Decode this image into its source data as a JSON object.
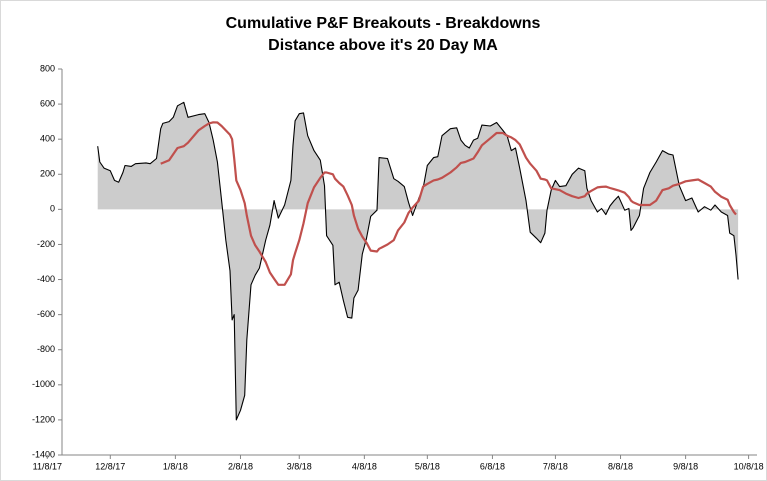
{
  "chart_data": {
    "type": "line",
    "title": "Cumulative P&F Breakouts - Breakdowns",
    "subtitle": "Distance above it's 20 Day MA",
    "x": [
      "2017-12-02",
      "2017-12-03",
      "2017-12-05",
      "2017-12-08",
      "2017-12-10",
      "2017-12-12",
      "2017-12-14",
      "2017-12-15",
      "2017-12-18",
      "2017-12-20",
      "2017-12-25",
      "2017-12-27",
      "2017-12-30",
      "2018-01-01",
      "2018-01-02",
      "2018-01-05",
      "2018-01-07",
      "2018-01-09",
      "2018-01-12",
      "2018-01-14",
      "2018-01-19",
      "2018-01-22",
      "2018-01-24",
      "2018-01-26",
      "2018-01-28",
      "2018-01-30",
      "2018-02-01",
      "2018-02-03",
      "2018-02-04",
      "2018-02-05",
      "2018-02-06",
      "2018-02-08",
      "2018-02-10",
      "2018-02-11",
      "2018-02-13",
      "2018-02-15",
      "2018-02-17",
      "2018-02-20",
      "2018-02-22",
      "2018-02-24",
      "2018-02-26",
      "2018-03-01",
      "2018-03-04",
      "2018-03-05",
      "2018-03-06",
      "2018-03-08",
      "2018-03-10",
      "2018-03-12",
      "2018-03-15",
      "2018-03-18",
      "2018-03-20",
      "2018-03-21",
      "2018-03-24",
      "2018-03-25",
      "2018-03-27",
      "2018-03-29",
      "2018-03-31",
      "2018-04-02",
      "2018-04-03",
      "2018-04-05",
      "2018-04-07",
      "2018-04-09",
      "2018-04-11",
      "2018-04-14",
      "2018-04-15",
      "2018-04-19",
      "2018-04-22",
      "2018-04-24",
      "2018-04-27",
      "2018-04-29",
      "2018-05-01",
      "2018-05-04",
      "2018-05-06",
      "2018-05-08",
      "2018-05-11",
      "2018-05-13",
      "2018-05-15",
      "2018-05-19",
      "2018-05-22",
      "2018-05-24",
      "2018-05-26",
      "2018-05-28",
      "2018-05-30",
      "2018-06-01",
      "2018-06-03",
      "2018-06-07",
      "2018-06-10",
      "2018-06-13",
      "2018-06-15",
      "2018-06-17",
      "2018-06-19",
      "2018-06-21",
      "2018-06-24",
      "2018-06-26",
      "2018-06-29",
      "2018-07-01",
      "2018-07-03",
      "2018-07-04",
      "2018-07-06",
      "2018-07-08",
      "2018-07-10",
      "2018-07-13",
      "2018-07-16",
      "2018-07-19",
      "2018-07-22",
      "2018-07-23",
      "2018-07-25",
      "2018-07-28",
      "2018-07-30",
      "2018-08-01",
      "2018-08-03",
      "2018-08-05",
      "2018-08-07",
      "2018-08-10",
      "2018-08-12",
      "2018-08-13",
      "2018-08-14",
      "2018-08-17",
      "2018-08-19",
      "2018-08-22",
      "2018-08-25",
      "2018-08-28",
      "2018-08-31",
      "2018-09-02",
      "2018-09-05",
      "2018-09-08",
      "2018-09-11",
      "2018-09-14",
      "2018-09-17",
      "2018-09-20",
      "2018-09-22",
      "2018-09-25",
      "2018-09-28",
      "2018-09-29",
      "2018-10-01",
      "2018-10-02",
      "2018-10-03"
    ],
    "series": [
      {
        "color": "#000000",
        "fill": "#cccccc",
        "values": [
          360,
          270,
          235,
          220,
          165,
          155,
          210,
          250,
          245,
          260,
          265,
          260,
          290,
          460,
          490,
          500,
          525,
          590,
          610,
          525,
          540,
          545,
          495,
          395,
          270,
          50,
          -175,
          -350,
          -630,
          -600,
          -1200,
          -1145,
          -1060,
          -745,
          -430,
          -375,
          -335,
          -175,
          -90,
          50,
          -50,
          25,
          165,
          365,
          505,
          545,
          550,
          420,
          335,
          280,
          135,
          -150,
          -205,
          -430,
          -415,
          -520,
          -615,
          -620,
          -505,
          -460,
          -255,
          -165,
          -40,
          -5,
          295,
          290,
          175,
          160,
          130,
          40,
          -35,
          65,
          120,
          250,
          295,
          300,
          420,
          460,
          465,
          395,
          365,
          350,
          395,
          405,
          480,
          475,
          495,
          450,
          420,
          335,
          350,
          235,
          50,
          -130,
          -165,
          -190,
          -135,
          -5,
          110,
          165,
          130,
          135,
          200,
          235,
          220,
          120,
          50,
          -15,
          5,
          -30,
          20,
          50,
          75,
          -5,
          5,
          -120,
          -105,
          -35,
          120,
          210,
          270,
          335,
          315,
          310,
          135,
          50,
          65,
          -15,
          15,
          -5,
          25,
          -15,
          -35,
          -135,
          -150,
          -260,
          -400
        ]
      },
      {
        "color": "#c0504d",
        "values": [
          null,
          null,
          null,
          null,
          null,
          null,
          null,
          null,
          null,
          null,
          null,
          null,
          null,
          260,
          265,
          280,
          315,
          350,
          360,
          380,
          450,
          475,
          490,
          496,
          495,
          475,
          450,
          425,
          400,
          290,
          165,
          110,
          35,
          -35,
          -150,
          -205,
          -240,
          -300,
          -360,
          -395,
          -430,
          -430,
          -370,
          -290,
          -250,
          -175,
          -80,
          35,
          125,
          180,
          210,
          210,
          200,
          175,
          150,
          130,
          80,
          25,
          -35,
          -110,
          -155,
          -190,
          -235,
          -240,
          -225,
          -200,
          -175,
          -120,
          -75,
          -20,
          10,
          50,
          130,
          145,
          165,
          170,
          180,
          210,
          240,
          265,
          270,
          280,
          290,
          325,
          365,
          405,
          435,
          435,
          420,
          410,
          395,
          370,
          295,
          260,
          220,
          175,
          170,
          165,
          120,
          115,
          110,
          90,
          75,
          65,
          75,
          90,
          105,
          125,
          128,
          130,
          122,
          115,
          108,
          95,
          70,
          50,
          40,
          25,
          25,
          25,
          50,
          110,
          120,
          135,
          145,
          160,
          165,
          170,
          150,
          130,
          100,
          72,
          55,
          25,
          -15,
          -30,
          null
        ]
      }
    ],
    "xlim": [
      "2017-11-15",
      "2018-10-12"
    ],
    "xticks": [
      {
        "value": "2017-11-08",
        "label": "11/8/17"
      },
      {
        "value": "2017-12-08",
        "label": "12/8/17"
      },
      {
        "value": "2018-01-08",
        "label": "1/8/18"
      },
      {
        "value": "2018-02-08",
        "label": "2/8/18"
      },
      {
        "value": "2018-03-08",
        "label": "3/8/18"
      },
      {
        "value": "2018-04-08",
        "label": "4/8/18"
      },
      {
        "value": "2018-05-08",
        "label": "5/8/18"
      },
      {
        "value": "2018-06-08",
        "label": "6/8/18"
      },
      {
        "value": "2018-07-08",
        "label": "7/8/18"
      },
      {
        "value": "2018-08-08",
        "label": "8/8/18"
      },
      {
        "value": "2018-09-08",
        "label": "9/8/18"
      },
      {
        "value": "2018-10-08",
        "label": "10/8/18"
      }
    ],
    "ylim": [
      -1400,
      800
    ],
    "yticks": [
      -1400,
      -1200,
      -1000,
      -800,
      -600,
      -400,
      -200,
      0,
      200,
      400,
      600,
      800
    ]
  }
}
